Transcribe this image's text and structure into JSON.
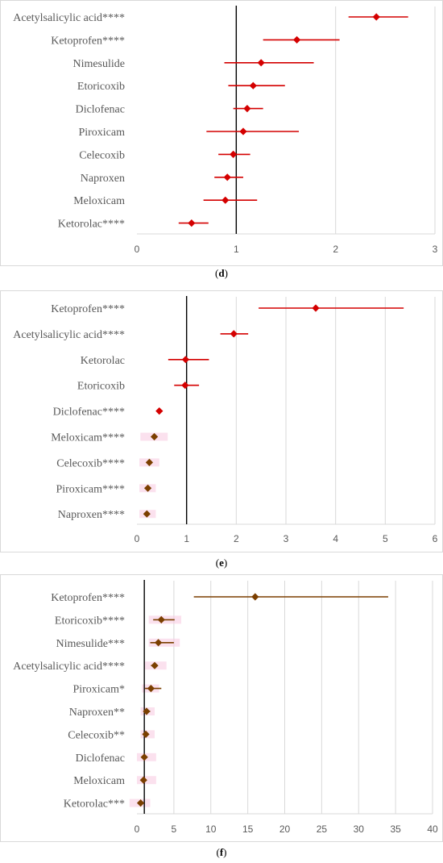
{
  "colors": {
    "red": "#d40000",
    "brown": "#7b3f00",
    "pink_band": "#f7c8e0",
    "grid": "#d9d9d9",
    "refline": "#000000",
    "label": "#595959"
  },
  "chart_data": [
    {
      "type": "scatter",
      "subtype": "forest",
      "panel_label": "d",
      "xlim": [
        0,
        3
      ],
      "xticks": [
        0,
        1,
        2,
        3
      ],
      "reference_x": 1,
      "grid": true,
      "categories": [
        "Acetylsalicylic acid****",
        "Ketoprofen****",
        "Nimesulide",
        "Etoricoxib",
        "Diclofenac",
        "Piroxicam",
        "Celecoxib",
        "Naproxen",
        "Meloxicam",
        "Ketorolac****"
      ],
      "estimate": [
        2.41,
        1.61,
        1.25,
        1.17,
        1.11,
        1.07,
        0.97,
        0.91,
        0.89,
        0.55
      ],
      "ci_low": [
        2.13,
        1.27,
        0.88,
        0.92,
        0.97,
        0.7,
        0.82,
        0.78,
        0.67,
        0.42
      ],
      "ci_high": [
        2.73,
        2.04,
        1.78,
        1.49,
        1.27,
        1.63,
        1.14,
        1.07,
        1.21,
        0.72
      ],
      "marker_color": [
        "red",
        "red",
        "red",
        "red",
        "red",
        "red",
        "red",
        "red",
        "red",
        "red"
      ],
      "ci_color": [
        "red",
        "red",
        "red",
        "red",
        "red",
        "red",
        "red",
        "red",
        "red",
        "red"
      ]
    },
    {
      "type": "scatter",
      "subtype": "forest",
      "panel_label": "e",
      "xlim": [
        0,
        6
      ],
      "xticks": [
        0,
        1,
        2,
        3,
        4,
        5,
        6
      ],
      "reference_x": 1,
      "grid": true,
      "categories": [
        "Ketoprofen****",
        "Acetylsalicylic acid****",
        "Ketorolac",
        "Etoricoxib",
        "Diclofenac****",
        "Meloxicam****",
        "Celecoxib****",
        "Piroxicam****",
        "Naproxen****"
      ],
      "estimate": [
        3.6,
        1.95,
        0.98,
        0.97,
        0.45,
        0.35,
        0.25,
        0.22,
        0.2
      ],
      "ci_low": [
        2.45,
        1.68,
        0.63,
        0.75,
        0.4,
        0.27,
        0.18,
        0.15,
        0.13
      ],
      "ci_high": [
        5.37,
        2.24,
        1.45,
        1.25,
        0.52,
        0.44,
        0.33,
        0.29,
        0.28
      ],
      "marker_color": [
        "red",
        "red",
        "red",
        "red",
        "red",
        "brown",
        "brown",
        "brown",
        "brown"
      ],
      "ci_color": [
        "red",
        "red",
        "red",
        "red",
        "red",
        "pink_band",
        "pink_band",
        "pink_band",
        "pink_band"
      ],
      "band": [
        null,
        null,
        null,
        null,
        null,
        [
          0.07,
          0.62
        ],
        [
          0.05,
          0.45
        ],
        [
          0.05,
          0.38
        ],
        [
          0.05,
          0.38
        ]
      ]
    },
    {
      "type": "scatter",
      "subtype": "forest",
      "panel_label": "f",
      "xlim": [
        0,
        40
      ],
      "xticks": [
        0,
        5,
        10,
        15,
        20,
        25,
        30,
        35,
        40
      ],
      "reference_x": 1,
      "grid": true,
      "categories": [
        "Ketoprofen****",
        "Etoricoxib****",
        "Nimesulide***",
        "Acetylsalicylic acid****",
        "Piroxicam*",
        "Naproxen**",
        "Celecoxib**",
        "Diclofenac",
        "Meloxicam",
        "Ketorolac***"
      ],
      "estimate": [
        16.0,
        3.3,
        2.9,
        2.4,
        1.9,
        1.3,
        1.2,
        1.0,
        0.9,
        0.5
      ],
      "ci_low": [
        7.7,
        2.2,
        1.8,
        1.9,
        1.1,
        1.0,
        0.9,
        0.8,
        0.7,
        0.3
      ],
      "ci_high": [
        34.0,
        5.1,
        5.0,
        2.8,
        3.3,
        1.8,
        1.6,
        1.2,
        1.2,
        0.9
      ],
      "marker_color": [
        "brown",
        "brown",
        "brown",
        "brown",
        "brown",
        "brown",
        "brown",
        "brown",
        "brown",
        "brown"
      ],
      "ci_color": [
        "brown",
        "brown",
        "brown",
        "brown",
        "brown",
        "brown",
        "brown",
        "brown",
        "brown",
        "brown"
      ],
      "band": [
        null,
        [
          1.6,
          6.0
        ],
        [
          1.6,
          5.8
        ],
        [
          1.0,
          4.0
        ],
        [
          0.7,
          3.0
        ],
        [
          0.5,
          2.4
        ],
        [
          0.5,
          2.4
        ],
        [
          0.0,
          2.6
        ],
        [
          0.0,
          2.6
        ],
        [
          -1.0,
          1.8
        ]
      ]
    }
  ]
}
